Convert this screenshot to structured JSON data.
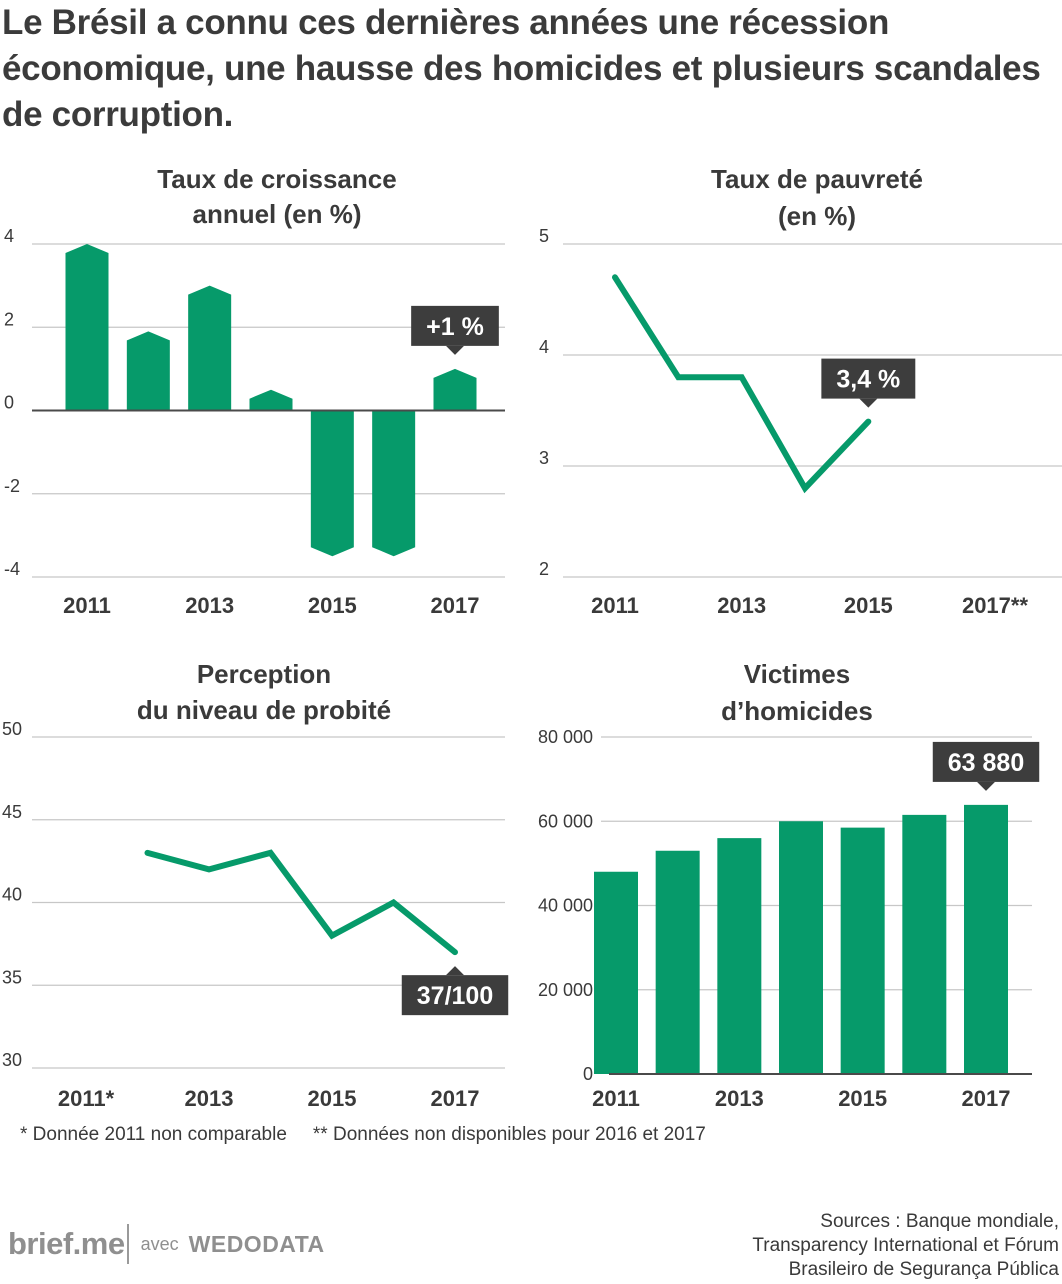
{
  "title": "Le Brésil a connu ces dernières années une récession économique, une hausse des homicides et plusieurs scandales de corruption.",
  "colors": {
    "accent": "#069a6a",
    "callout_bg": "#3d3d3d",
    "grid": "#c7c7c7",
    "axis": "#4a4a4a",
    "text": "#3a3a3a"
  },
  "chart_data": [
    {
      "type": "bar",
      "title": [
        "Taux de croissance",
        "annuel (en %)"
      ],
      "x": [
        2011,
        2012,
        2013,
        2014,
        2015,
        2016,
        2017
      ],
      "values": [
        4.0,
        1.9,
        3.0,
        0.5,
        -3.5,
        -3.5,
        1.0
      ],
      "xticks": [
        2011,
        2013,
        2015,
        2017
      ],
      "xtick_labels": [
        "2011",
        "2013",
        "2015",
        "2017"
      ],
      "yticks": [
        4,
        2,
        0,
        -2,
        -4
      ],
      "ytick_labels": [
        "4",
        "2",
        "0",
        "-2",
        "-4"
      ],
      "ylim": [
        -4,
        4
      ],
      "grid": true,
      "callout": {
        "text": "+1 %",
        "x": 2017,
        "value": 1.0
      }
    },
    {
      "type": "line",
      "title": [
        "Taux de pauvreté",
        "(en %)"
      ],
      "x": [
        2011,
        2012,
        2013,
        2014,
        2015
      ],
      "values": [
        4.7,
        3.8,
        3.8,
        2.8,
        3.4
      ],
      "xticks": [
        2011,
        2013,
        2015,
        2017
      ],
      "xtick_labels": [
        "2011",
        "2013",
        "2015",
        "2017**"
      ],
      "yticks": [
        5,
        4,
        3,
        2
      ],
      "ytick_labels": [
        "5",
        "4",
        "3",
        "2"
      ],
      "ylim": [
        2,
        5
      ],
      "grid": true,
      "callout": {
        "text": "3,4 %",
        "x": 2015,
        "value": 3.4
      }
    },
    {
      "type": "line",
      "title": [
        "Perception",
        "du niveau de probité"
      ],
      "x": [
        2012,
        2013,
        2014,
        2015,
        2016,
        2017
      ],
      "values": [
        43,
        42,
        43,
        38,
        40,
        37
      ],
      "xticks": [
        2011,
        2013,
        2015,
        2017
      ],
      "xtick_labels": [
        "2011*",
        "2013",
        "2015",
        "2017"
      ],
      "yticks": [
        50,
        45,
        40,
        35,
        30
      ],
      "ytick_labels": [
        "50",
        "45",
        "40",
        "35",
        "30"
      ],
      "ylim": [
        30,
        50
      ],
      "grid": true,
      "callout": {
        "text": "37/100",
        "x": 2017,
        "value": 37
      }
    },
    {
      "type": "bar",
      "title": [
        "Victimes",
        "d’homicides"
      ],
      "x": [
        2011,
        2012,
        2013,
        2014,
        2015,
        2016,
        2017
      ],
      "values": [
        48000,
        53000,
        56000,
        60000,
        58500,
        61500,
        63880
      ],
      "xticks": [
        2011,
        2013,
        2015,
        2017
      ],
      "xtick_labels": [
        "2011",
        "2013",
        "2015",
        "2017"
      ],
      "yticks": [
        80000,
        60000,
        40000,
        20000,
        0
      ],
      "ytick_labels": [
        "80 000",
        "60 000",
        "40 000",
        "20 000",
        "0"
      ],
      "ylim": [
        0,
        80000
      ],
      "grid": true,
      "callout": {
        "text": "63 880",
        "x": 2017,
        "value": 63880
      }
    }
  ],
  "footnotes": [
    "* Donnée 2011 non comparable",
    "** Données non disponibles pour 2016 et 2017"
  ],
  "brand": {
    "logo": "brief.me",
    "with": "avec",
    "partner": "WEDODATA"
  },
  "sources": [
    "Sources : Banque mondiale,",
    "Transparency International et Fórum",
    "Brasileiro de Segurança Pública"
  ]
}
